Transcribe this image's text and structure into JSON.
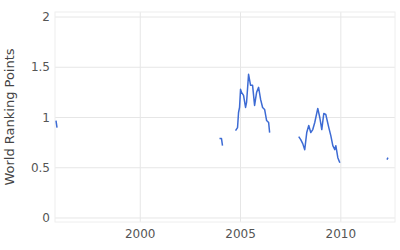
{
  "chart_data": {
    "type": "line",
    "y_label": "World Ranking Points",
    "x": [
      1995.8,
      1995.85,
      1995.9,
      2003.95,
      2004.05,
      2004.1,
      2004.2,
      2004.75,
      2004.85,
      2004.9,
      2004.95,
      2005.0,
      2005.05,
      2005.15,
      2005.25,
      2005.3,
      2005.4,
      2005.5,
      2005.6,
      2005.7,
      2005.8,
      2005.9,
      2006.0,
      2006.1,
      2006.2,
      2006.3,
      2006.4,
      2006.45,
      2006.6,
      2007.9,
      2008.0,
      2008.1,
      2008.2,
      2008.3,
      2008.4,
      2008.5,
      2008.6,
      2008.7,
      2008.85,
      2008.95,
      2009.05,
      2009.15,
      2009.25,
      2009.4,
      2009.5,
      2009.6,
      2009.7,
      2009.75,
      2009.85,
      2009.95,
      2010.1,
      2012.3,
      2012.35
    ],
    "values": [
      0.97,
      0.9,
      null,
      0.79,
      0.79,
      0.72,
      null,
      0.87,
      0.9,
      1.05,
      1.1,
      1.28,
      1.25,
      1.22,
      1.1,
      1.15,
      1.43,
      1.32,
      1.32,
      1.12,
      1.25,
      1.3,
      1.18,
      1.1,
      1.08,
      0.97,
      0.95,
      0.85,
      null,
      0.81,
      0.78,
      0.74,
      0.68,
      0.85,
      0.92,
      0.85,
      0.88,
      0.95,
      1.09,
      1.0,
      0.88,
      1.04,
      1.03,
      0.9,
      0.82,
      0.72,
      0.68,
      0.72,
      0.6,
      0.55,
      null,
      0.58,
      0.6
    ],
    "color": "#3d6bd4",
    "xlim": [
      1995.75,
      2012.7
    ],
    "xticks": [
      2000,
      2005,
      2010
    ],
    "ylim": [
      -0.04,
      2.05
    ],
    "yticks": [
      0,
      0.5,
      1,
      1.5,
      2
    ],
    "grid": true
  }
}
